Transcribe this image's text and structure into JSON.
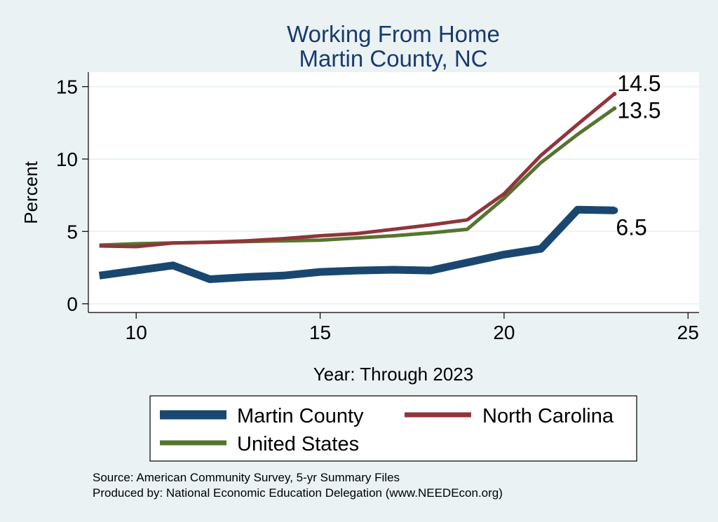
{
  "chart_data": {
    "type": "line",
    "title_lines": [
      "Working From Home",
      "Martin County, NC"
    ],
    "xlabel": "Year: Through 2023",
    "ylabel": "Percent",
    "xlim": [
      8.7,
      25.3
    ],
    "ylim": [
      -0.6,
      16
    ],
    "xticks": [
      10,
      15,
      20,
      25
    ],
    "yticks": [
      0,
      5,
      10,
      15
    ],
    "grid": "horizontal",
    "legend_position": "bottom",
    "colors": {
      "background": "#eaf2f3",
      "plot_bg": "#ffffff",
      "martin": "#1a476f",
      "nc": "#90353b",
      "us": "#55752f"
    },
    "series": [
      {
        "name": "Martin County",
        "color": "#1a476f",
        "width": 11,
        "x": [
          9,
          10,
          11,
          12,
          13,
          14,
          15,
          16,
          17,
          18,
          19,
          20,
          21,
          22,
          23
        ],
        "y": [
          1.95,
          2.3,
          2.65,
          1.7,
          1.85,
          1.95,
          2.2,
          2.3,
          2.35,
          2.3,
          2.85,
          3.4,
          3.8,
          6.5,
          6.45
        ],
        "end_label": "6.5"
      },
      {
        "name": "North Carolina",
        "color": "#90353b",
        "width": 5,
        "x": [
          9,
          10,
          11,
          12,
          13,
          14,
          15,
          16,
          17,
          18,
          19,
          20,
          21,
          22,
          23
        ],
        "y": [
          4.0,
          3.95,
          4.2,
          4.25,
          4.35,
          4.5,
          4.7,
          4.85,
          5.15,
          5.45,
          5.8,
          7.6,
          10.25,
          12.4,
          14.5
        ],
        "end_label": "14.5"
      },
      {
        "name": "United States",
        "color": "#55752f",
        "width": 5,
        "x": [
          9,
          10,
          11,
          12,
          13,
          14,
          15,
          16,
          17,
          18,
          19,
          20,
          21,
          22,
          23
        ],
        "y": [
          4.05,
          4.15,
          4.2,
          4.25,
          4.3,
          4.35,
          4.4,
          4.55,
          4.7,
          4.9,
          5.15,
          7.3,
          9.75,
          11.7,
          13.5
        ],
        "end_label": "13.5"
      }
    ],
    "legend_items": [
      "Martin County",
      "North Carolina",
      "United States"
    ],
    "notes": [
      "Source: American Community Survey, 5-yr Summary Files",
      "Produced by: National Economic Education Delegation (www.NEEDEcon.org)"
    ]
  }
}
